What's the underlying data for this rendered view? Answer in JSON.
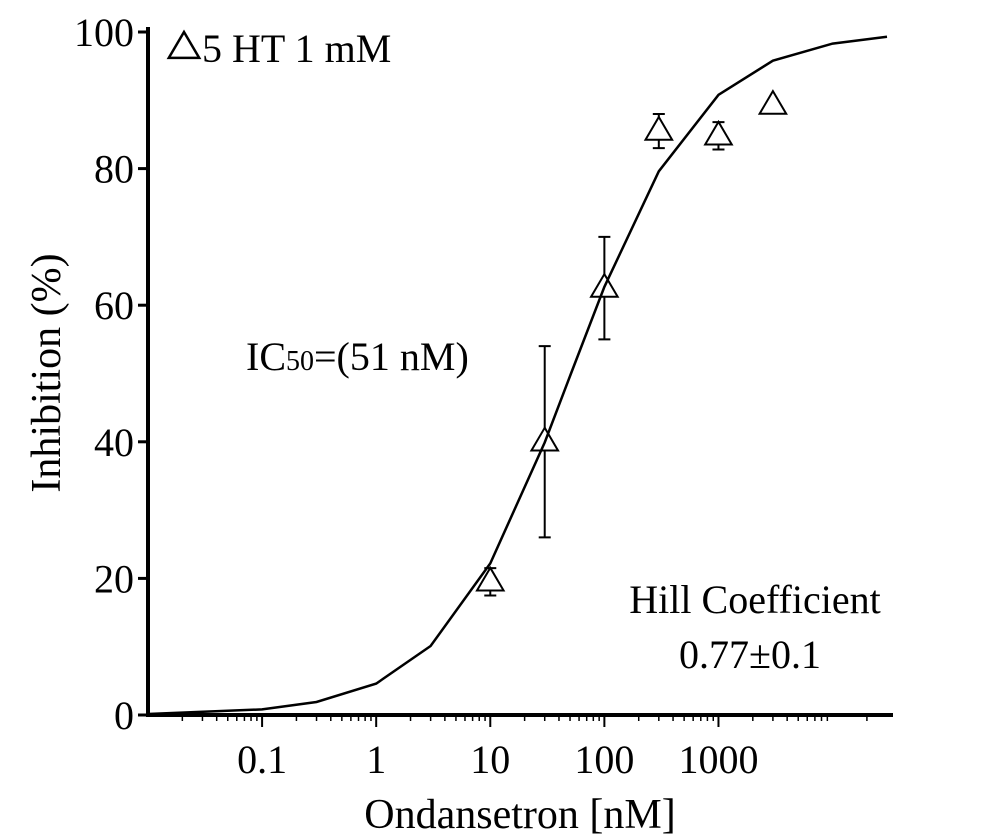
{
  "chart_data": {
    "type": "scatter",
    "xlabel": "Ondansetron [nM]",
    "ylabel": "Inhibition (%)",
    "xscale": "log",
    "xlim": [
      0.01,
      30000
    ],
    "xticks": [
      0.1,
      1,
      10,
      100,
      1000
    ],
    "ylim": [
      0,
      100
    ],
    "yticks": [
      0,
      20,
      40,
      60,
      80,
      100
    ],
    "legend": "upper left",
    "series": [
      {
        "name": "5 HT 1 mM",
        "type": "scatter",
        "color": "#000000",
        "marker": "triangle",
        "x": [
          10,
          30,
          100,
          300,
          1000,
          3000
        ],
        "values": [
          19.5,
          40,
          62.5,
          85.5,
          84.8,
          89.3
        ],
        "errors": [
          2,
          14,
          7.5,
          2.5,
          2,
          null
        ]
      },
      {
        "type": "line",
        "color": "#000000",
        "x": [
          0.01,
          0.1,
          0.3,
          1,
          3,
          10,
          30,
          51,
          100,
          300,
          1000,
          3000,
          10000,
          30000
        ],
        "values": [
          0.14,
          0.82,
          1.9,
          4.6,
          10.1,
          22.2,
          39.9,
          50,
          62.7,
          79.6,
          90.8,
          95.8,
          98.3,
          99.3
        ]
      }
    ],
    "annotations": {
      "ic50": {
        "main": "IC",
        "sub": "50",
        "rest": "=(51 nM)"
      },
      "hill_title": "Hill Coefficient",
      "hill_value": "0.77±0.1"
    }
  }
}
